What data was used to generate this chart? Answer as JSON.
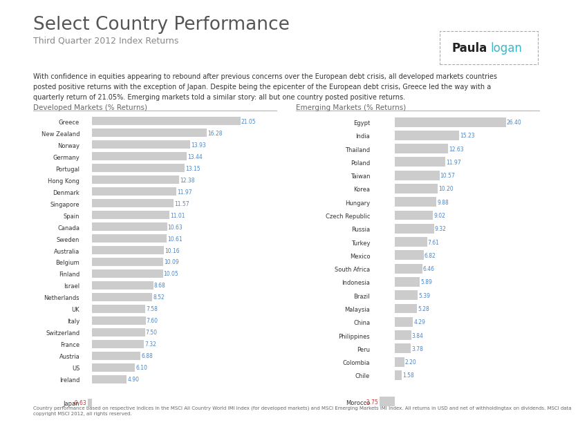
{
  "title": "Select Country Performance",
  "subtitle": "Third Quarter 2012 Index Returns",
  "body_text": "With confidence in equities appearing to rebound after previous concerns over the European debt crisis, all developed markets countries\nposted positive returns with the exception of Japan. Despite being the epicenter of the European debt crisis, Greece led the way with a\nquarterly return of 21.05%. Emerging markets told a similar story: all but one country posted positive returns.",
  "footer_text": "Country performance based on respective indices in the MSCI All Country World IMI Index (for developed markets) and MSCI Emerging Markets IMI Index. All returns in USD and net of withholdingtax on dividends. MSCI data\ncopyright MSCI 2012, all rights reserved.",
  "dev_label": "Developed Markets (% Returns)",
  "em_label": "Emerging Markets (% Returns)",
  "dev_countries": [
    "Greece",
    "New Zealand",
    "Norway",
    "Germany",
    "Portugal",
    "Hong Kong",
    "Denmark",
    "Singapore",
    "Spain",
    "Canada",
    "Sweden",
    "Australia",
    "Belgium",
    "Finland",
    "Israel",
    "Netherlands",
    "UK",
    "Italy",
    "Switzerland",
    "France",
    "Austria",
    "US",
    "Ireland",
    "",
    "Japan"
  ],
  "dev_values": [
    21.05,
    16.28,
    13.93,
    13.44,
    13.15,
    12.38,
    11.97,
    11.57,
    11.01,
    10.63,
    10.61,
    10.16,
    10.09,
    10.05,
    8.68,
    8.52,
    7.58,
    7.6,
    7.5,
    7.32,
    6.88,
    6.1,
    4.9,
    0.0,
    -0.63
  ],
  "em_countries": [
    "Egypt",
    "India",
    "Thailand",
    "Poland",
    "Taiwan",
    "Korea",
    "Hungary",
    "Czech Republic",
    "Russia",
    "Turkey",
    "Mexico",
    "South Africa",
    "Indonesia",
    "Brazil",
    "Malaysia",
    "China",
    "Philippines",
    "Peru",
    "Colombia",
    "Chile",
    "",
    "Morocco"
  ],
  "em_values": [
    26.4,
    15.23,
    12.63,
    11.97,
    10.57,
    10.2,
    9.88,
    9.02,
    9.32,
    7.61,
    6.82,
    6.46,
    5.89,
    5.39,
    5.28,
    4.29,
    3.84,
    3.78,
    2.2,
    1.58,
    0.0,
    -3.75
  ],
  "bar_color": "#cccccc",
  "label_color": "#4a86c8",
  "neg_label_color": "#cc3333",
  "bg_color": "#ffffff",
  "logo_bold": "Paula",
  "logo_thin": "logan",
  "logo_border": "#aaaaaa",
  "title_color": "#555555",
  "subtitle_color": "#888888",
  "body_color": "#333333",
  "footer_color": "#666666",
  "axis_label_color": "#666666",
  "ytick_color": "#333333",
  "divider_color": "#aaaaaa"
}
